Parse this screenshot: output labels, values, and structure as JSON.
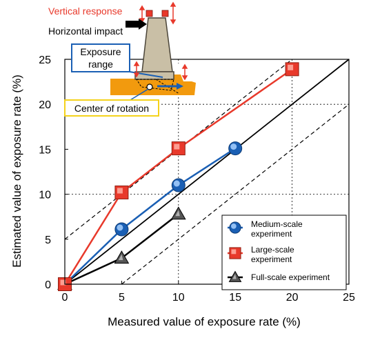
{
  "chart_data": {
    "type": "line",
    "xlabel": "Measured value of exposure rate (%)",
    "ylabel": "Estimated value of exposure rate (%)",
    "xlim": [
      0,
      25
    ],
    "ylim": [
      0,
      25
    ],
    "x_ticks": [
      "0",
      "5",
      "10",
      "15",
      "20",
      "25"
    ],
    "y_ticks": [
      "0",
      "5",
      "10",
      "15",
      "20",
      "25"
    ],
    "grid": "dotted lines at x=10, x=20, y=10, y=20",
    "reference_lines": [
      {
        "kind": "solid",
        "from": [
          0,
          0
        ],
        "to": [
          25,
          25
        ]
      },
      {
        "kind": "dashed",
        "from": [
          0,
          5
        ],
        "to": [
          20,
          25
        ]
      },
      {
        "kind": "dashed",
        "from": [
          5,
          0
        ],
        "to": [
          25,
          20
        ]
      }
    ],
    "legend_position": "bottom-right",
    "series": [
      {
        "name": "Medium-scale experiment",
        "marker": "circle",
        "color": "#1a5fb4",
        "x": [
          0,
          5,
          10,
          15
        ],
        "y": [
          0,
          6.1,
          11.0,
          15.1
        ]
      },
      {
        "name": "Large-scale experiment",
        "marker": "square",
        "color": "#e8392b",
        "x": [
          0,
          5,
          10,
          20
        ],
        "y": [
          0,
          10.2,
          15.1,
          23.9
        ]
      },
      {
        "name": "Full-scale experiment",
        "marker": "triangle",
        "color": "#000000",
        "x": [
          0,
          5,
          10
        ],
        "y": [
          0,
          2.9,
          7.8
        ]
      }
    ]
  },
  "diagram": {
    "vertical_response": "Vertical response",
    "horizontal_impact": "Horizontal impact",
    "exposure_range": "Exposure range",
    "center_of_rotation": "Center of rotation"
  }
}
